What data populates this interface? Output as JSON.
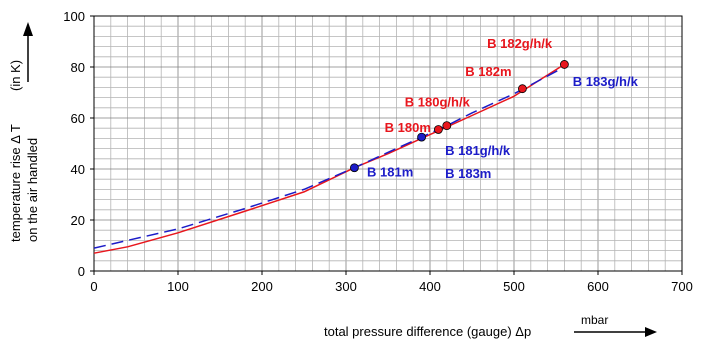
{
  "chart_data": {
    "type": "line",
    "x_ticks": [
      0,
      100,
      200,
      300,
      400,
      500,
      600,
      700
    ],
    "y_ticks": [
      0,
      20,
      40,
      60,
      80,
      100
    ],
    "xlim": [
      0,
      700
    ],
    "ylim": [
      0,
      100
    ],
    "x_minor_step": 20,
    "y_minor_step": 4,
    "grid": true,
    "xlabel": "total pressure difference (gauge) Δp",
    "xunit": "mbar",
    "ylabel_line1": "temperature rise Δ T",
    "ylabel_unit": "(in K)",
    "ylabel_line2": "on the air handled",
    "series": [
      {
        "style": "solid",
        "color": "#e8161d",
        "points": [
          [
            0,
            7
          ],
          [
            40,
            9.5
          ],
          [
            100,
            15
          ],
          [
            180,
            23.5
          ],
          [
            250,
            31
          ],
          [
            310,
            40.5
          ],
          [
            350,
            46
          ],
          [
            400,
            53.5
          ],
          [
            450,
            61
          ],
          [
            500,
            68.5
          ],
          [
            560,
            81
          ]
        ]
      },
      {
        "style": "dashed",
        "color": "#1c1cc8",
        "points": [
          [
            0,
            9
          ],
          [
            100,
            16.5
          ],
          [
            180,
            24.5
          ],
          [
            250,
            32
          ],
          [
            310,
            40.5
          ],
          [
            390,
            52.5
          ],
          [
            420,
            57
          ],
          [
            450,
            62
          ],
          [
            500,
            69.5
          ],
          [
            560,
            80
          ]
        ]
      }
    ],
    "markers": [
      {
        "x": 310,
        "y": 40.5,
        "color": "#1c1cc8"
      },
      {
        "x": 390,
        "y": 52.5,
        "color": "#1c1cc8"
      },
      {
        "x": 410,
        "y": 55.5,
        "color": "#e8161d"
      },
      {
        "x": 420,
        "y": 57,
        "color": "#e8161d"
      },
      {
        "x": 510,
        "y": 71.5,
        "color": "#e8161d"
      },
      {
        "x": 560,
        "y": 81,
        "color": "#e8161d"
      }
    ],
    "annotations": [
      {
        "text": "B 182g/h/k",
        "x": 468,
        "y": 87.5,
        "color": "#e8161d"
      },
      {
        "text": "B 182m",
        "x": 442,
        "y": 76.5,
        "color": "#e8161d"
      },
      {
        "text": "B 180g/h/k",
        "x": 370,
        "y": 64.5,
        "color": "#e8161d"
      },
      {
        "text": "B 180m",
        "x": 346,
        "y": 54.5,
        "color": "#e8161d"
      },
      {
        "text": "B 183g/h/k",
        "x": 570,
        "y": 72.5,
        "color": "#1c1cc8"
      },
      {
        "text": "B 181g/h/k",
        "x": 418,
        "y": 45.5,
        "color": "#1c1cc8"
      },
      {
        "text": "B 183m",
        "x": 418,
        "y": 36.5,
        "color": "#1c1cc8"
      },
      {
        "text": "B 181m",
        "x": 325,
        "y": 37,
        "color": "#1c1cc8"
      }
    ]
  }
}
